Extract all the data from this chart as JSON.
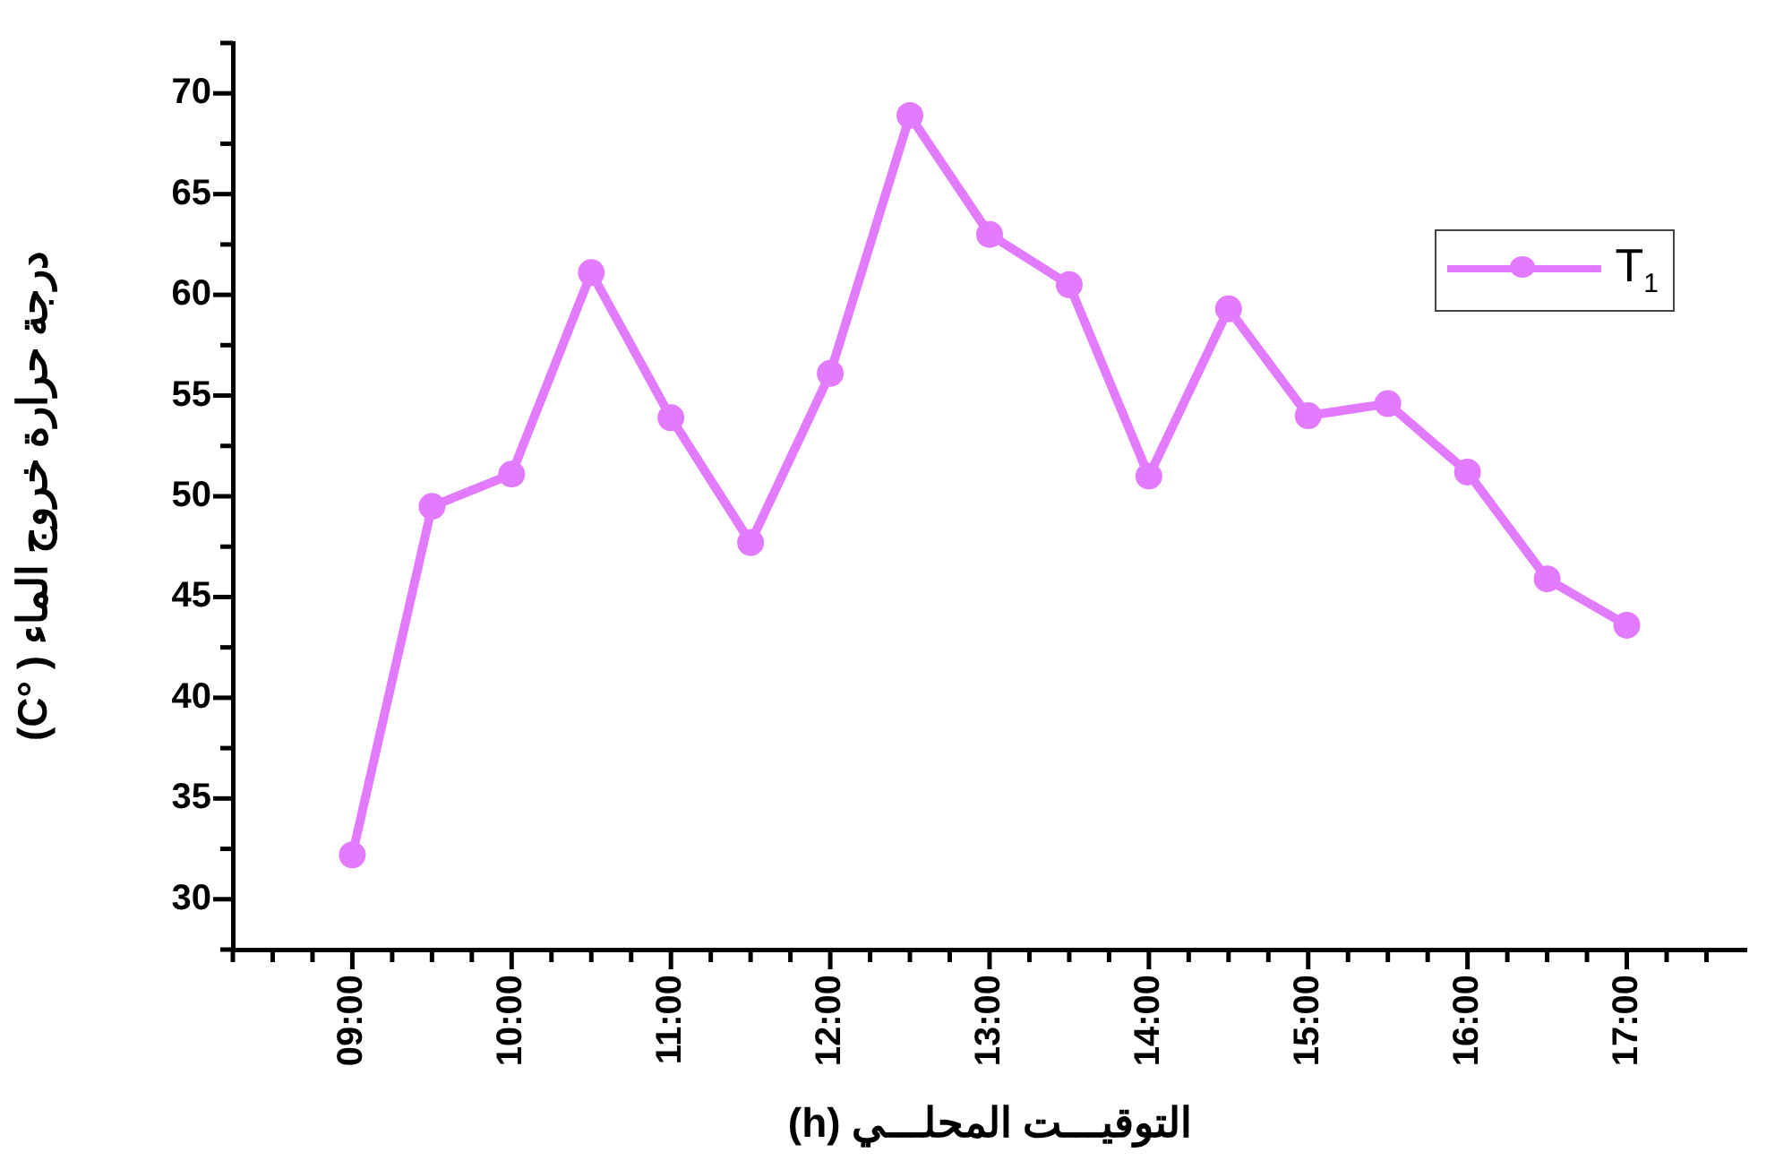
{
  "chart_data": {
    "type": "line",
    "xlabel": "التوقيـــت المحلـــي (h)",
    "ylabel": "درجة حرارة خروج الماء ( °C)",
    "x": [
      9,
      9.5,
      10,
      10.5,
      11,
      11.5,
      12,
      12.5,
      13,
      13.5,
      14,
      14.5,
      15,
      15.5,
      16,
      16.5,
      17
    ],
    "series": [
      {
        "name": "T$_{1}$",
        "color": "#e27bff",
        "values": [
          32.2,
          49.5,
          51.1,
          61.1,
          53.9,
          47.7,
          56.1,
          68.9,
          63.0,
          60.5,
          51.0,
          59.3,
          54.0,
          54.6,
          51.2,
          45.9,
          43.6
        ]
      }
    ],
    "xlim": [
      8.25,
      17.75
    ],
    "xticks": [
      {
        "value": 8.25,
        "label": null
      },
      {
        "value": 8.5,
        "label": null
      },
      {
        "value": 8.75,
        "label": null
      },
      {
        "value": 9,
        "label": "09:00"
      },
      {
        "value": 9.25,
        "label": null
      },
      {
        "value": 9.5,
        "label": null
      },
      {
        "value": 9.75,
        "label": null
      },
      {
        "value": 10,
        "label": "10:00"
      },
      {
        "value": 10.25,
        "label": null
      },
      {
        "value": 10.5,
        "label": null
      },
      {
        "value": 10.75,
        "label": null
      },
      {
        "value": 11,
        "label": "11:00"
      },
      {
        "value": 11.25,
        "label": null
      },
      {
        "value": 11.5,
        "label": null
      },
      {
        "value": 11.75,
        "label": null
      },
      {
        "value": 12,
        "label": "12:00"
      },
      {
        "value": 12.25,
        "label": null
      },
      {
        "value": 12.5,
        "label": null
      },
      {
        "value": 12.75,
        "label": null
      },
      {
        "value": 13,
        "label": "13:00"
      },
      {
        "value": 13.25,
        "label": null
      },
      {
        "value": 13.5,
        "label": null
      },
      {
        "value": 13.75,
        "label": null
      },
      {
        "value": 14,
        "label": "14:00"
      },
      {
        "value": 14.25,
        "label": null
      },
      {
        "value": 14.5,
        "label": null
      },
      {
        "value": 14.75,
        "label": null
      },
      {
        "value": 15,
        "label": "15:00"
      },
      {
        "value": 15.25,
        "label": null
      },
      {
        "value": 15.5,
        "label": null
      },
      {
        "value": 15.75,
        "label": null
      },
      {
        "value": 16,
        "label": "16:00"
      },
      {
        "value": 16.25,
        "label": null
      },
      {
        "value": 16.5,
        "label": null
      },
      {
        "value": 16.75,
        "label": null
      },
      {
        "value": 17,
        "label": "17:00"
      },
      {
        "value": 17.25,
        "label": null
      },
      {
        "value": 17.5,
        "label": null
      }
    ],
    "ylim": [
      27.5,
      72.5
    ],
    "yticks": [
      {
        "value": 27.5,
        "label": null
      },
      30,
      {
        "value": 32.5,
        "label": null
      },
      35,
      {
        "value": 37.5,
        "label": null
      },
      40,
      {
        "value": 42.5,
        "label": null
      },
      45,
      {
        "value": 47.5,
        "label": null
      },
      50,
      {
        "value": 52.5,
        "label": null
      },
      55,
      {
        "value": 57.5,
        "label": null
      },
      60,
      {
        "value": 62.5,
        "label": null
      },
      65,
      {
        "value": 67.5,
        "label": null
      },
      70,
      {
        "value": 72.5,
        "label": null
      }
    ],
    "grid": false,
    "legend": "top right",
    "marker": "circle",
    "line_style": "solid"
  }
}
